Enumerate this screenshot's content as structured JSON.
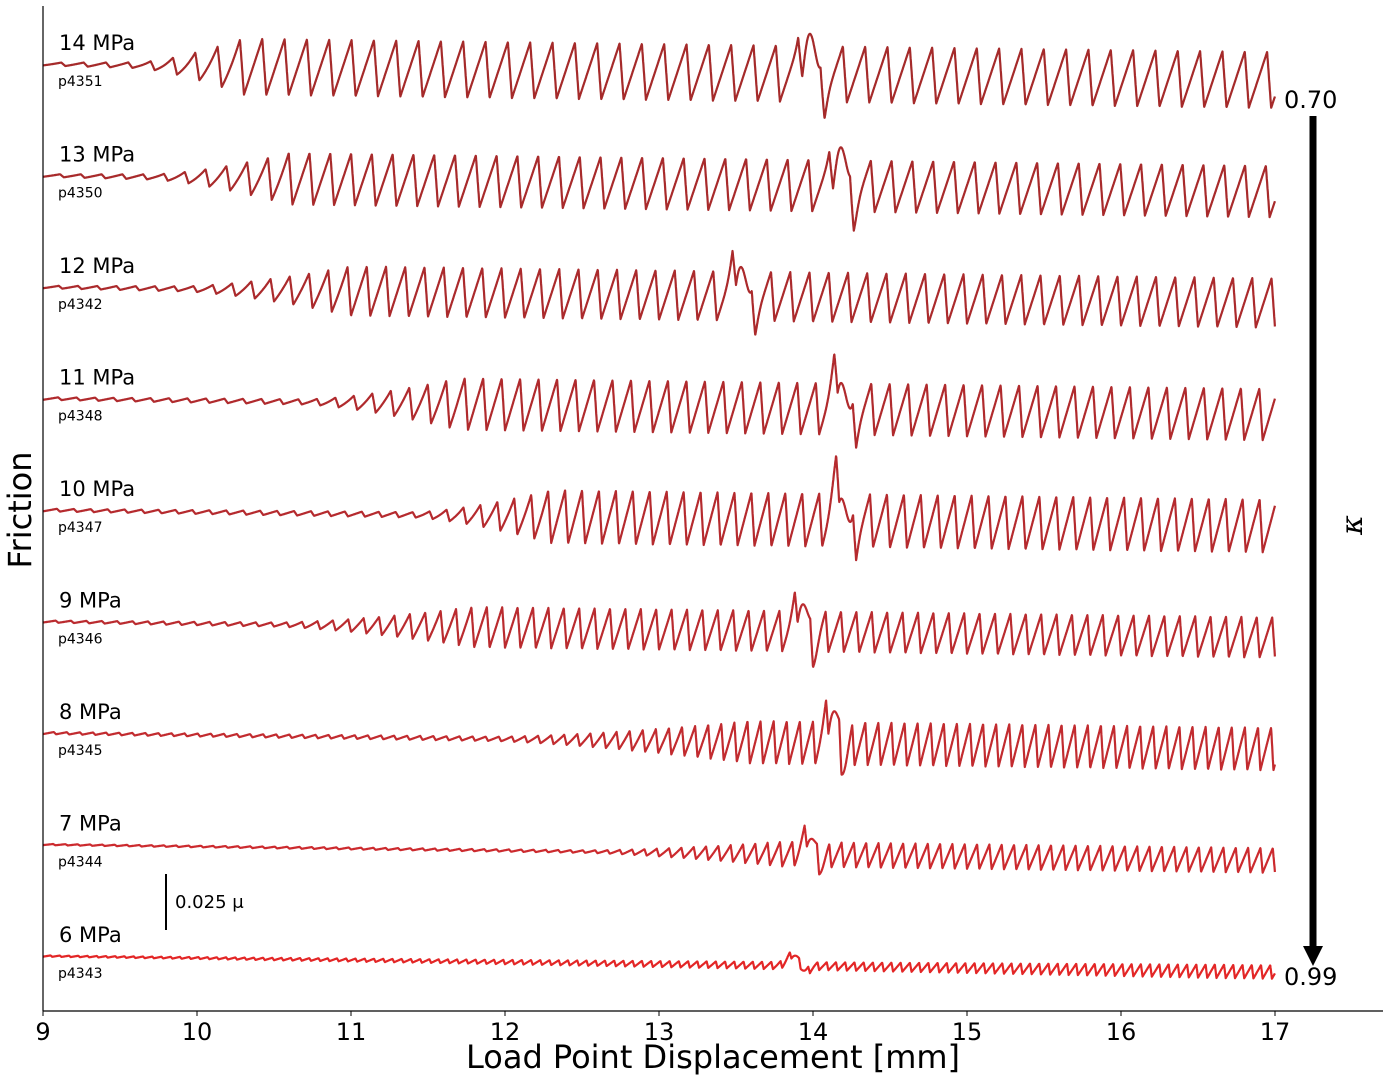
{
  "chart_data": {
    "type": "line",
    "xlabel": "Load Point Displacement [mm]",
    "ylabel": "Friction",
    "xlim": [
      9,
      17.7
    ],
    "xticks": [
      9,
      10,
      11,
      12,
      13,
      14,
      15,
      16,
      17
    ],
    "scale_bar": {
      "value": 0.025,
      "label": "0.025 μ"
    },
    "kappa": {
      "symbol": "κ",
      "top_label": "0.70",
      "bottom_label": "0.99"
    },
    "series": [
      {
        "name": "14 MPa",
        "run": "p4351",
        "color": "#a52a2a",
        "onset": 9.6,
        "full": 10.3,
        "amp": 0.0125,
        "period": 0.145,
        "event": 13.95
      },
      {
        "name": "13 MPa",
        "run": "p4350",
        "color": "#a82a2b",
        "onset": 9.7,
        "full": 10.6,
        "amp": 0.0115,
        "period": 0.135,
        "event": 14.15
      },
      {
        "name": "12 MPa",
        "run": "p4342",
        "color": "#ab2a2c",
        "onset": 9.9,
        "full": 11.0,
        "amp": 0.011,
        "period": 0.125,
        "event": 13.5
      },
      {
        "name": "11 MPa",
        "run": "p4348",
        "color": "#b02a2d",
        "onset": 10.7,
        "full": 11.7,
        "amp": 0.0115,
        "period": 0.12,
        "event": 14.15
      },
      {
        "name": "10 MPa",
        "run": "p4347",
        "color": "#b52a2e",
        "onset": 11.4,
        "full": 12.3,
        "amp": 0.0118,
        "period": 0.11,
        "event": 14.15
      },
      {
        "name": "9 MPa",
        "run": "p4346",
        "color": "#ba2b2f",
        "onset": 10.5,
        "full": 11.8,
        "amp": 0.009,
        "period": 0.1,
        "event": 13.9
      },
      {
        "name": "8 MPa",
        "run": "p4345",
        "color": "#c22b2f",
        "onset": 11.9,
        "full": 13.6,
        "amp": 0.0095,
        "period": 0.085,
        "event": 14.1
      },
      {
        "name": "7 MPa",
        "run": "p4344",
        "color": "#cc2a2e",
        "onset": 12.5,
        "full": 13.8,
        "amp": 0.0055,
        "period": 0.08,
        "event": 13.95
      },
      {
        "name": "6 MPa",
        "run": "p4343",
        "color": "#e32626",
        "onset": 9.0,
        "full": 16.6,
        "amp": 0.003,
        "period": 0.06,
        "event": 13.85
      }
    ]
  }
}
